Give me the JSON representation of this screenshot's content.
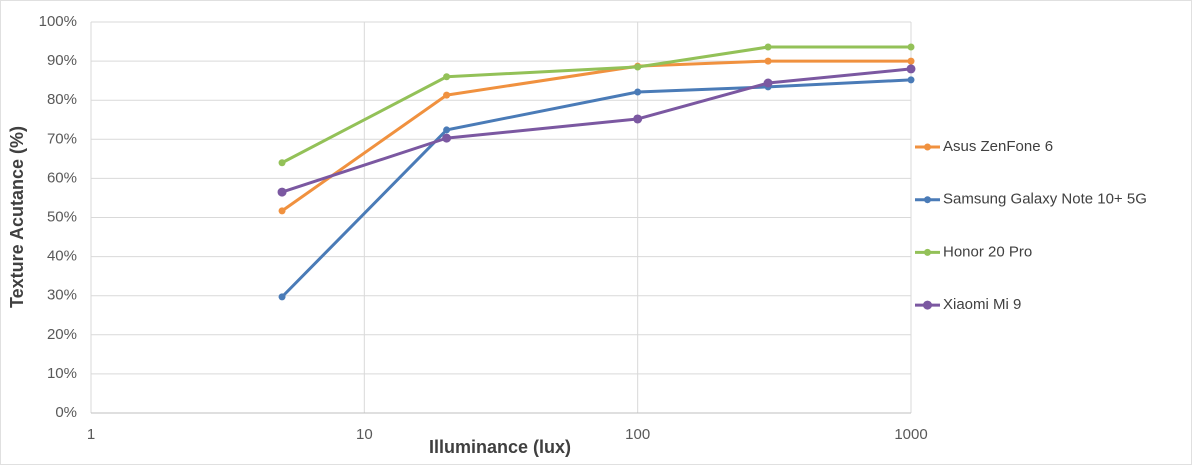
{
  "chart_data": {
    "type": "line",
    "x_label": "Illuminance (lux)",
    "y_label": "Texture Acutance (%)",
    "x": [
      5,
      20,
      100,
      300,
      1000
    ],
    "xscale": "log",
    "xlim": [
      1,
      1000
    ],
    "xticks": [
      1,
      10,
      100,
      1000
    ],
    "ylim": [
      0,
      100
    ],
    "yticks": [
      {
        "value": 0,
        "label": "0%"
      },
      {
        "value": 10,
        "label": "10%"
      },
      {
        "value": 20,
        "label": "20%"
      },
      {
        "value": 30,
        "label": "30%"
      },
      {
        "value": 40,
        "label": "40%"
      },
      {
        "value": 50,
        "label": "50%"
      },
      {
        "value": 60,
        "label": "60%"
      },
      {
        "value": 70,
        "label": "70%"
      },
      {
        "value": 80,
        "label": "80%"
      },
      {
        "value": 90,
        "label": "90%"
      },
      {
        "value": 100,
        "label": "100%"
      }
    ],
    "grid": true,
    "legend": "right",
    "series": [
      {
        "name": "Asus ZenFone 6",
        "color": "#f0913f",
        "values": [
          51.7,
          81.3,
          88.7,
          90,
          90
        ]
      },
      {
        "name": "Samsung Galaxy Note 10+ 5G",
        "color": "#4a7bb7",
        "values": [
          29.7,
          72.4,
          82.1,
          83.4,
          85.2
        ]
      },
      {
        "name": "Honor 20 Pro",
        "color": "#93c158",
        "values": [
          64,
          86,
          88.5,
          93.6,
          93.6
        ]
      },
      {
        "name": "Xiaomi Mi 9",
        "color": "#7b58a1",
        "values": [
          56.5,
          70.3,
          75.2,
          84.4,
          88
        ]
      }
    ]
  }
}
